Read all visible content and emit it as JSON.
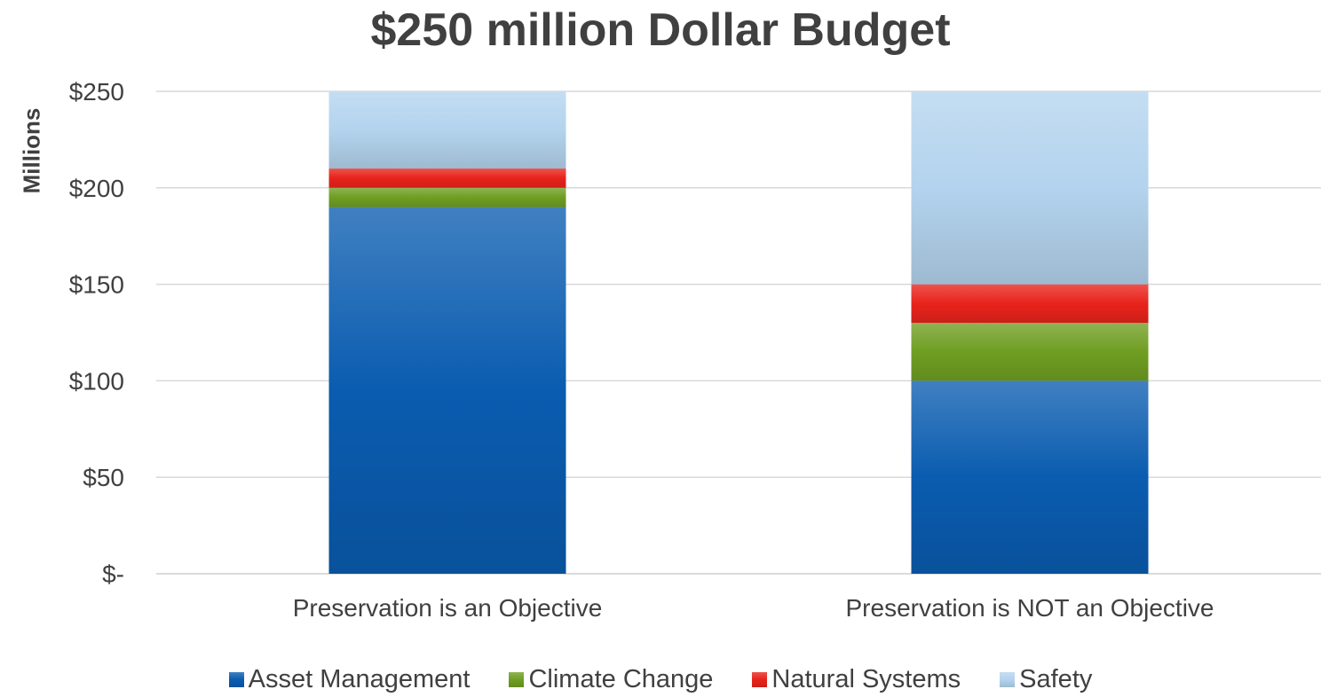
{
  "chart_data": {
    "type": "bar",
    "stacked": true,
    "title": "$250 million Dollar Budget",
    "xlabel": "",
    "ylabel": "Millions",
    "ylim": [
      0,
      250
    ],
    "yticks": [
      0,
      50,
      100,
      150,
      200,
      250
    ],
    "ytick_labels": [
      "$-",
      "$50",
      "$100",
      "$150",
      "$200",
      "$250"
    ],
    "categories": [
      "Preservation is an Objective",
      "Preservation is NOT an Objective"
    ],
    "series": [
      {
        "name": "Asset Management",
        "values": [
          190,
          100
        ],
        "color": "#0a5cb0"
      },
      {
        "name": "Climate Change",
        "values": [
          10,
          30
        ],
        "color": "#6f9e22"
      },
      {
        "name": "Natural Systems",
        "values": [
          10,
          20
        ],
        "color": "#e8231b"
      },
      {
        "name": "Safety",
        "values": [
          40,
          100
        ],
        "color": "#b3d3ee"
      }
    ],
    "grid": true,
    "legend_position": "bottom"
  }
}
